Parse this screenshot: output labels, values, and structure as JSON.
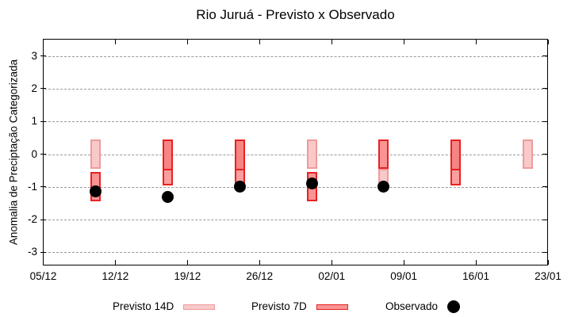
{
  "title": "Rio Juruá - Previsto x Observado",
  "chart_data": {
    "type": "bar",
    "title": "Rio Juruá - Previsto x Observado",
    "ylabel": "Anomalia de Preciptação Categorizada",
    "ylim": [
      -3.4,
      3.5
    ],
    "y_ticks": [
      3,
      2,
      1,
      0,
      -1,
      -2,
      -3
    ],
    "x_ticks": [
      {
        "day": 0,
        "label": "05/12"
      },
      {
        "day": 7,
        "label": "12/12"
      },
      {
        "day": 14,
        "label": "19/12"
      },
      {
        "day": 21,
        "label": "26/12"
      },
      {
        "day": 28,
        "label": "02/01"
      },
      {
        "day": 35,
        "label": "09/01"
      },
      {
        "day": 42,
        "label": "16/01"
      },
      {
        "day": 49,
        "label": "23/01"
      }
    ],
    "grid": "horizontal-dashed",
    "legend_position": "bottom",
    "bar_width_days": 1,
    "category_halfwidth": 0.45,
    "styles": {
      "p14": {
        "fill": "#f9c9c9",
        "border": "#ef9a9a"
      },
      "p7": {
        "fill": "#fa9494",
        "border": "#e62222"
      },
      "overlap_top": {
        "fill": "#f88383",
        "border": "#e62222"
      },
      "overlap_bottom": {
        "fill": "#fb9e9e",
        "border": "#e62222"
      },
      "observed": "#000000",
      "grid_color": "#9a9a9a"
    },
    "groups": [
      {
        "date": "10/12",
        "day": 5,
        "bars": [
          {
            "range": [
              -0.45,
              0.45
            ],
            "style": "p14"
          },
          {
            "range": [
              -1.45,
              -0.55
            ],
            "style": "p7"
          }
        ],
        "observado": -1.15
      },
      {
        "date": "17/12",
        "day": 12,
        "bars": [
          {
            "range": [
              -0.45,
              0.45
            ],
            "style": "overlap_top",
            "open": "bottom"
          },
          {
            "range": [
              -0.95,
              -0.45
            ],
            "style": "overlap_bottom"
          }
        ],
        "observado": -1.3
      },
      {
        "date": "24/12",
        "day": 19,
        "bars": [
          {
            "range": [
              -0.45,
              0.45
            ],
            "style": "overlap_top",
            "open": "bottom"
          },
          {
            "range": [
              -0.95,
              -0.45
            ],
            "style": "overlap_bottom"
          }
        ],
        "observado": -1.0
      },
      {
        "date": "31/12",
        "day": 26,
        "bars": [
          {
            "range": [
              -0.45,
              0.45
            ],
            "style": "p14"
          },
          {
            "range": [
              -1.45,
              -0.55
            ],
            "style": "p7"
          }
        ],
        "observado": -0.9
      },
      {
        "date": "07/01",
        "day": 33,
        "bars": [
          {
            "range": [
              -0.45,
              0.45
            ],
            "style": "p7"
          },
          {
            "range": [
              -0.95,
              -0.45
            ],
            "style": "p14"
          }
        ],
        "observado": -1.0
      },
      {
        "date": "14/01",
        "day": 40,
        "bars": [
          {
            "range": [
              -0.45,
              0.45
            ],
            "style": "overlap_top",
            "open": "bottom"
          },
          {
            "range": [
              -0.95,
              -0.45
            ],
            "style": "overlap_bottom"
          }
        ],
        "observado": null
      },
      {
        "date": "21/01",
        "day": 47,
        "bars": [
          {
            "range": [
              -0.45,
              0.45
            ],
            "style": "p14"
          }
        ],
        "observado": null
      }
    ],
    "legend": [
      {
        "label": "Previsto 14D",
        "swatch": "box",
        "style": "p14"
      },
      {
        "label": "Previsto 7D",
        "swatch": "box",
        "style": "p7"
      },
      {
        "label": "Observado",
        "swatch": "dot"
      }
    ]
  }
}
